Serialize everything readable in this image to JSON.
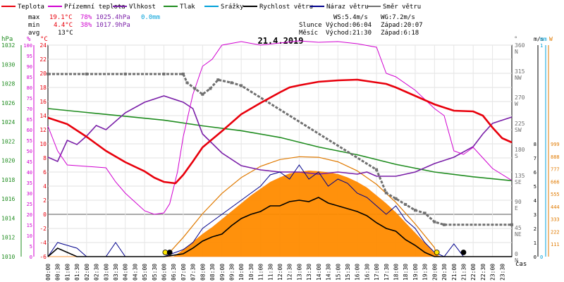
{
  "chart_data": {
    "type": "line",
    "title": "21.4.2019",
    "legend": [
      {
        "name": "Teplota",
        "color": "#e8000c"
      },
      {
        "name": "Přízemní teplota",
        "color": "#d000d0"
      },
      {
        "name": "Vlhkost",
        "color": "#7a1fa8"
      },
      {
        "name": "Tlak",
        "color": "#1f8c1f"
      },
      {
        "name": "Srážky",
        "color": "#00a0d8"
      },
      {
        "name": "Rychlost větru",
        "color": "#000000"
      },
      {
        "name": "Náraz větru",
        "color": "#00008c"
      },
      {
        "name": "Směr větru",
        "color": "#707070"
      }
    ],
    "stats": {
      "max_label": "max",
      "min_label": "min",
      "avg_label": "avg",
      "max_temp": "19.1°C",
      "max_hum": "78%",
      "max_press": "1025.4hPa",
      "max_rain": "0.0mm",
      "min_temp": "4.4°C",
      "min_hum": "38%",
      "min_press": "1017.9hPa",
      "avg_temp": "13°C"
    },
    "info": {
      "ws": "WS:5.4m/s",
      "wg": "WG:7.2m/s",
      "sun_label": "Slunce",
      "sun_rise": "Východ:06:04",
      "sun_set": "Západ:20:07",
      "moon_label": "Měsíc",
      "moon_rise": "Východ:21:30",
      "moon_set": "Západ:6:18"
    },
    "axes": {
      "pressure": {
        "unit": "hPa",
        "ticks": [
          1010,
          1012,
          1014,
          1016,
          1018,
          1020,
          1022,
          1024,
          1026,
          1028,
          1030,
          1032
        ]
      },
      "humidity": {
        "unit": "%",
        "ticks": [
          0,
          5,
          10,
          15,
          20,
          25,
          30,
          35,
          40,
          45,
          50,
          55,
          60,
          65,
          70,
          75,
          80,
          85,
          90,
          95,
          100
        ]
      },
      "temperature": {
        "unit": "°C",
        "ticks": [
          -6,
          -4,
          -2,
          0,
          2,
          4,
          6,
          8,
          10,
          12,
          14,
          16,
          18,
          20,
          22,
          24
        ]
      },
      "direction": {
        "unit": "°",
        "ticks": [
          {
            "deg": "0",
            "dir": "N"
          },
          {
            "deg": "45",
            "dir": "NE"
          },
          {
            "deg": "90",
            "dir": "E"
          },
          {
            "deg": "135",
            "dir": "SE"
          },
          {
            "deg": "180",
            "dir": "S"
          },
          {
            "deg": "225",
            "dir": "SW"
          },
          {
            "deg": "270",
            "dir": "W"
          },
          {
            "deg": "315",
            "dir": "NW"
          },
          {
            "deg": "360",
            "dir": "N"
          }
        ]
      },
      "wind": {
        "unit": "m/s",
        "ticks": [
          0,
          1,
          2,
          3,
          4,
          5,
          6,
          7,
          8
        ]
      },
      "rain": {
        "unit": "mm",
        "ticks": [
          0,
          1
        ]
      },
      "solar": {
        "unit": "W",
        "ticks": [
          111,
          222,
          333,
          444,
          555,
          666,
          777,
          888,
          999
        ]
      },
      "time": {
        "label": "čas",
        "ticks": [
          "00:00",
          "00:30",
          "01:00",
          "01:30",
          "02:00",
          "02:30",
          "03:00",
          "03:30",
          "04:00",
          "04:30",
          "05:00",
          "05:30",
          "06:00",
          "06:30",
          "07:00",
          "07:30",
          "08:00",
          "08:30",
          "09:00",
          "09:30",
          "10:00",
          "10:30",
          "11:00",
          "11:30",
          "12:00",
          "12:30",
          "13:00",
          "13:30",
          "14:00",
          "14:30",
          "15:00",
          "15:30",
          "16:00",
          "16:30",
          "17:00",
          "17:30",
          "18:00",
          "18:30",
          "19:00",
          "19:30",
          "20:00",
          "20:30",
          "21:00",
          "21:30",
          "22:00",
          "22:30",
          "23:00",
          "23:30"
        ]
      }
    },
    "series": {
      "temperature": [
        [
          0,
          13.7
        ],
        [
          1,
          12.8
        ],
        [
          2,
          11
        ],
        [
          3,
          9
        ],
        [
          4,
          7.4
        ],
        [
          5,
          6.1
        ],
        [
          5.5,
          5.2
        ],
        [
          6,
          4.6
        ],
        [
          6.6,
          4.4
        ],
        [
          7,
          5.6
        ],
        [
          7.5,
          7.5
        ],
        [
          8,
          9.5
        ],
        [
          9,
          11.8
        ],
        [
          10,
          14.2
        ],
        [
          11,
          15.8
        ],
        [
          12,
          17.3
        ],
        [
          12.5,
          18
        ],
        [
          13,
          18.3
        ],
        [
          14,
          18.8
        ],
        [
          15,
          19
        ],
        [
          16,
          19.1
        ],
        [
          16.5,
          18.9
        ],
        [
          17,
          18.7
        ],
        [
          17.5,
          18.5
        ],
        [
          18,
          18
        ],
        [
          18.5,
          17.4
        ],
        [
          19,
          16.8
        ],
        [
          20,
          15.6
        ],
        [
          21,
          14.7
        ],
        [
          22,
          14.6
        ],
        [
          22.5,
          14
        ],
        [
          23,
          12.3
        ],
        [
          23.5,
          10.8
        ],
        [
          24,
          10.2
        ]
      ],
      "ground_temp": [
        [
          0,
          12.5
        ],
        [
          0.5,
          9
        ],
        [
          1,
          7
        ],
        [
          2,
          6.8
        ],
        [
          3,
          6.6
        ],
        [
          3.5,
          4.6
        ],
        [
          4,
          3
        ],
        [
          5,
          0.5
        ],
        [
          5.5,
          0
        ],
        [
          6,
          0.2
        ],
        [
          6.3,
          1.5
        ],
        [
          6.7,
          6
        ],
        [
          7,
          11
        ],
        [
          7.5,
          17
        ],
        [
          8,
          21
        ],
        [
          8.5,
          22
        ],
        [
          9,
          24
        ],
        [
          10,
          24.5
        ],
        [
          11,
          24
        ],
        [
          12,
          24.3
        ],
        [
          13,
          24.6
        ],
        [
          14,
          24.4
        ],
        [
          15,
          24.5
        ],
        [
          16,
          24.2
        ],
        [
          17,
          23.7
        ],
        [
          17.5,
          20
        ],
        [
          18,
          19.5
        ],
        [
          19,
          17.6
        ],
        [
          20,
          15
        ],
        [
          20.5,
          14
        ],
        [
          21,
          9
        ],
        [
          21.5,
          8.5
        ],
        [
          22,
          9.5
        ],
        [
          22.5,
          8
        ],
        [
          23,
          6.5
        ],
        [
          24,
          4.8
        ]
      ],
      "humidity": [
        [
          0,
          47
        ],
        [
          0.5,
          45
        ],
        [
          1,
          55
        ],
        [
          1.5,
          53
        ],
        [
          2,
          57
        ],
        [
          2.5,
          62
        ],
        [
          3,
          60
        ],
        [
          4,
          68
        ],
        [
          5,
          73
        ],
        [
          6,
          76
        ],
        [
          7,
          73
        ],
        [
          7.5,
          70
        ],
        [
          8,
          58
        ],
        [
          9,
          49
        ],
        [
          10,
          43
        ],
        [
          11,
          41
        ],
        [
          12,
          40
        ],
        [
          13,
          40
        ],
        [
          14,
          39
        ],
        [
          15,
          40
        ],
        [
          16,
          39
        ],
        [
          16.5,
          40
        ],
        [
          17,
          38
        ],
        [
          18,
          38
        ],
        [
          19,
          40
        ],
        [
          20,
          44
        ],
        [
          21,
          47
        ],
        [
          22,
          52
        ],
        [
          22.5,
          58
        ],
        [
          23,
          63
        ],
        [
          24,
          66
        ]
      ],
      "pressure": [
        [
          0,
          1025.4
        ],
        [
          2,
          1025
        ],
        [
          4,
          1024.6
        ],
        [
          6,
          1024.2
        ],
        [
          8,
          1023.6
        ],
        [
          10,
          1023.1
        ],
        [
          12,
          1022.4
        ],
        [
          14,
          1021.4
        ],
        [
          16,
          1020.6
        ],
        [
          18,
          1019.6
        ],
        [
          20,
          1018.8
        ],
        [
          22,
          1018.3
        ],
        [
          24,
          1017.9
        ]
      ],
      "wind_speed": [
        [
          0,
          0
        ],
        [
          0.5,
          0.6
        ],
        [
          1,
          0.3
        ],
        [
          1.5,
          0
        ],
        [
          2,
          0
        ],
        [
          3,
          0
        ],
        [
          4,
          0
        ],
        [
          5,
          0
        ],
        [
          6,
          0
        ],
        [
          7,
          0.2
        ],
        [
          7.5,
          0.6
        ],
        [
          8,
          1.1
        ],
        [
          8.5,
          1.4
        ],
        [
          9,
          1.6
        ],
        [
          9.5,
          2.2
        ],
        [
          10,
          2.7
        ],
        [
          10.5,
          3
        ],
        [
          11,
          3.2
        ],
        [
          11.5,
          3.6
        ],
        [
          12,
          3.6
        ],
        [
          12.5,
          3.9
        ],
        [
          13,
          4
        ],
        [
          13.5,
          3.9
        ],
        [
          14,
          4.2
        ],
        [
          14.5,
          3.8
        ],
        [
          15,
          3.6
        ],
        [
          15.5,
          3.4
        ],
        [
          16,
          3.2
        ],
        [
          16.5,
          2.9
        ],
        [
          17,
          2.4
        ],
        [
          17.5,
          2
        ],
        [
          18,
          1.8
        ],
        [
          18.5,
          1.2
        ],
        [
          19,
          0.8
        ],
        [
          19.5,
          0.3
        ],
        [
          20,
          0
        ],
        [
          24,
          0
        ]
      ],
      "wind_gust": [
        [
          0,
          0
        ],
        [
          0.5,
          1
        ],
        [
          1,
          0.8
        ],
        [
          1.5,
          0.6
        ],
        [
          2,
          0
        ],
        [
          3,
          0
        ],
        [
          3.5,
          1
        ],
        [
          4,
          0
        ],
        [
          6,
          0
        ],
        [
          7,
          0.5
        ],
        [
          7.5,
          1
        ],
        [
          8,
          2
        ],
        [
          8.5,
          2.5
        ],
        [
          9,
          3
        ],
        [
          9.5,
          3.5
        ],
        [
          10,
          4
        ],
        [
          10.5,
          4.5
        ],
        [
          11,
          5
        ],
        [
          11.5,
          5.8
        ],
        [
          12,
          6
        ],
        [
          12.5,
          5.5
        ],
        [
          13,
          6.5
        ],
        [
          13.5,
          5.5
        ],
        [
          14,
          6
        ],
        [
          14.5,
          5
        ],
        [
          15,
          5.5
        ],
        [
          15.5,
          5.2
        ],
        [
          16,
          4.5
        ],
        [
          16.5,
          4.2
        ],
        [
          17,
          3.6
        ],
        [
          17.5,
          3
        ],
        [
          18,
          3.6
        ],
        [
          18.5,
          2.6
        ],
        [
          19,
          2
        ],
        [
          19.5,
          1
        ],
        [
          20,
          0.3
        ],
        [
          20.5,
          0
        ],
        [
          21,
          0.9
        ],
        [
          21.5,
          0
        ],
        [
          24,
          0
        ]
      ],
      "solar": [
        [
          0,
          0
        ],
        [
          6.5,
          0
        ],
        [
          7,
          60
        ],
        [
          7.5,
          130
        ],
        [
          8,
          200
        ],
        [
          8.5,
          260
        ],
        [
          9,
          330
        ],
        [
          9.5,
          400
        ],
        [
          10,
          470
        ],
        [
          10.5,
          540
        ],
        [
          11,
          600
        ],
        [
          11.5,
          660
        ],
        [
          12,
          700
        ],
        [
          12.5,
          735
        ],
        [
          13,
          750
        ],
        [
          13.5,
          760
        ],
        [
          14,
          755
        ],
        [
          14.5,
          745
        ],
        [
          15,
          730
        ],
        [
          15.5,
          700
        ],
        [
          16,
          660
        ],
        [
          16.5,
          610
        ],
        [
          17,
          540
        ],
        [
          17.5,
          470
        ],
        [
          18,
          390
        ],
        [
          18.5,
          300
        ],
        [
          19,
          210
        ],
        [
          19.5,
          120
        ],
        [
          20,
          30
        ],
        [
          20.3,
          0
        ],
        [
          24,
          0
        ]
      ],
      "solar_theoretical": [
        [
          6.1,
          0
        ],
        [
          7,
          170
        ],
        [
          8,
          380
        ],
        [
          9,
          560
        ],
        [
          10,
          700
        ],
        [
          11,
          800
        ],
        [
          12,
          860
        ],
        [
          13,
          885
        ],
        [
          14,
          880
        ],
        [
          15,
          840
        ],
        [
          16,
          760
        ],
        [
          17,
          640
        ],
        [
          18,
          480
        ],
        [
          19,
          290
        ],
        [
          20,
          80
        ],
        [
          20.1,
          0
        ]
      ],
      "direction": [
        [
          0,
          315
        ],
        [
          2,
          315
        ],
        [
          4,
          315
        ],
        [
          6,
          315
        ],
        [
          7,
          315
        ],
        [
          7.2,
          300
        ],
        [
          7.6,
          290
        ],
        [
          8,
          280
        ],
        [
          8.4,
          290
        ],
        [
          8.8,
          305
        ],
        [
          9.5,
          300
        ],
        [
          10,
          295
        ],
        [
          17,
          150
        ],
        [
          17.5,
          110
        ],
        [
          18,
          100
        ],
        [
          18.5,
          90
        ],
        [
          19,
          80
        ],
        [
          19.5,
          75
        ],
        [
          20,
          60
        ],
        [
          20.5,
          55
        ],
        [
          24,
          55
        ]
      ]
    },
    "markers": [
      {
        "hour": 6.07,
        "kind": "sunrise"
      },
      {
        "hour": 6.3,
        "kind": "moonset"
      },
      {
        "hour": 20.12,
        "kind": "sunset"
      },
      {
        "hour": 21.5,
        "kind": "moonrise"
      }
    ]
  }
}
